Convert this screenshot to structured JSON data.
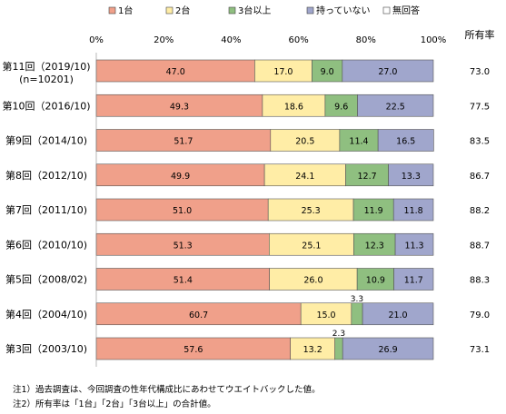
{
  "chart_data": {
    "type": "bar",
    "stacked": true,
    "orientation": "horizontal",
    "xlim": [
      0,
      100
    ],
    "x_ticks": [
      "0%",
      "20%",
      "40%",
      "60%",
      "80%",
      "100%"
    ],
    "grid": false,
    "legend_position": "top",
    "right_column_header": "所有率",
    "categories": [
      [
        "第11回（2019/10)",
        "(n=10201)"
      ],
      [
        "第10回（2016/10)"
      ],
      [
        "第9回（2014/10)"
      ],
      [
        "第8回（2012/10)"
      ],
      [
        "第7回（2011/10)"
      ],
      [
        "第6回（2010/10)"
      ],
      [
        "第5回（2008/02)"
      ],
      [
        "第4回（2004/10)"
      ],
      [
        "第3回（2003/10)"
      ]
    ],
    "series": [
      {
        "name": "1台",
        "color": "#f0a08a",
        "values": [
          47.0,
          49.3,
          51.7,
          49.9,
          51.0,
          51.3,
          51.4,
          60.7,
          57.6
        ]
      },
      {
        "name": "2台",
        "color": "#ffeda6",
        "values": [
          17.0,
          18.6,
          20.5,
          24.1,
          25.3,
          25.1,
          26.0,
          15.0,
          13.2
        ]
      },
      {
        "name": "3台以上",
        "color": "#8fbf80",
        "values": [
          9.0,
          9.6,
          11.4,
          12.7,
          11.9,
          12.3,
          10.9,
          3.3,
          2.3
        ]
      },
      {
        "name": "持っていない",
        "color": "#a0a6cc",
        "values": [
          27.0,
          22.5,
          16.5,
          13.3,
          11.8,
          11.3,
          11.7,
          21.0,
          26.9
        ]
      },
      {
        "name": "無回答",
        "color": "#ffffff",
        "values": [
          0,
          0,
          0,
          0,
          0,
          0,
          0,
          0,
          0
        ]
      }
    ],
    "value_labels": [
      [
        "47.0",
        "17.0",
        "9.0",
        "27.0"
      ],
      [
        "49.3",
        "18.6",
        "9.6",
        "22.5"
      ],
      [
        "51.7",
        "20.5",
        "11.4",
        "16.5"
      ],
      [
        "49.9",
        "24.1",
        "12.7",
        "13.3"
      ],
      [
        "51.0",
        "25.3",
        "11.9",
        "11.8"
      ],
      [
        "51.3",
        "25.1",
        "12.3",
        "11.3"
      ],
      [
        "51.4",
        "26.0",
        "10.9",
        "11.7"
      ],
      [
        "60.7",
        "15.0",
        "3.3",
        "21.0"
      ],
      [
        "57.6",
        "13.2",
        "2.3",
        "26.9"
      ]
    ],
    "ownership_rate": [
      "73.0",
      "77.5",
      "83.5",
      "86.7",
      "88.2",
      "88.7",
      "88.3",
      "79.0",
      "73.1"
    ]
  },
  "notes": [
    "注1）過去調査は、今回調査の性年代構成比にあわせてウエイトバックした値。",
    "注2）所有率は「1台」「2台」「3台以上」の合計値。"
  ]
}
